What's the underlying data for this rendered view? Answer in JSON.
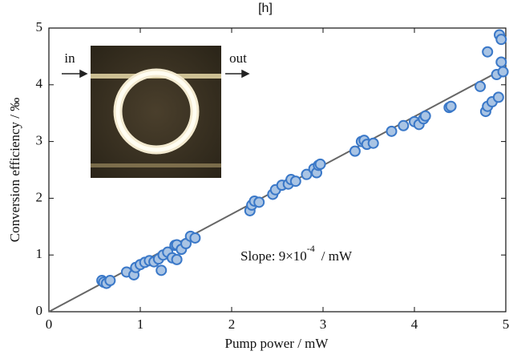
{
  "chart_data": {
    "type": "scatter",
    "title": "[h]",
    "x_label": "Pump power / mW",
    "y_label": "Conversion efficiency / ‰",
    "xlim": [
      0,
      5
    ],
    "ylim": [
      0,
      5
    ],
    "xticks": [
      0,
      1,
      2,
      3,
      4,
      5
    ],
    "yticks": [
      0,
      1,
      2,
      3,
      4,
      5
    ],
    "series": [
      {
        "color": "#3a78c8",
        "fill": "#a9c4e4",
        "x": [
          0.58,
          0.6,
          0.63,
          0.67,
          0.85,
          0.93,
          0.95,
          1.0,
          1.05,
          1.1,
          1.15,
          1.2,
          1.23,
          1.25,
          1.3,
          1.35,
          1.38,
          1.4,
          1.4,
          1.45,
          1.5,
          1.55,
          1.6,
          2.2,
          2.22,
          2.25,
          2.3,
          2.45,
          2.48,
          2.55,
          2.62,
          2.65,
          2.7,
          2.82,
          2.9,
          2.93,
          2.95,
          2.97,
          3.35,
          3.42,
          3.45,
          3.48,
          3.55,
          3.75,
          3.88,
          4.0,
          4.05,
          4.1,
          4.12,
          4.38,
          4.4,
          4.72,
          4.78,
          4.8,
          4.8,
          4.85,
          4.9,
          4.92,
          4.93,
          4.95,
          4.95,
          4.97
        ],
        "values": [
          0.55,
          0.52,
          0.5,
          0.55,
          0.7,
          0.65,
          0.78,
          0.83,
          0.87,
          0.9,
          0.88,
          0.93,
          0.73,
          1.0,
          1.05,
          0.95,
          1.17,
          1.18,
          0.92,
          1.1,
          1.2,
          1.33,
          1.3,
          1.78,
          1.88,
          1.95,
          1.93,
          2.07,
          2.15,
          2.23,
          2.25,
          2.33,
          2.3,
          2.42,
          2.52,
          2.45,
          2.58,
          2.6,
          2.83,
          3.0,
          3.02,
          2.95,
          2.97,
          3.18,
          3.28,
          3.35,
          3.3,
          3.4,
          3.45,
          3.6,
          3.62,
          3.97,
          3.53,
          3.62,
          4.58,
          3.7,
          4.18,
          3.78,
          4.88,
          4.8,
          4.4,
          4.23
        ]
      }
    ],
    "fit_line": {
      "x": [
        0,
        5
      ],
      "values": [
        0,
        4.3
      ],
      "color": "#666666"
    },
    "annotation": {
      "text": "Slope: 9×10",
      "superscript": "-4",
      "suffix": "/ mW"
    },
    "inset": {
      "input_label": "in",
      "output_label": "out"
    }
  }
}
